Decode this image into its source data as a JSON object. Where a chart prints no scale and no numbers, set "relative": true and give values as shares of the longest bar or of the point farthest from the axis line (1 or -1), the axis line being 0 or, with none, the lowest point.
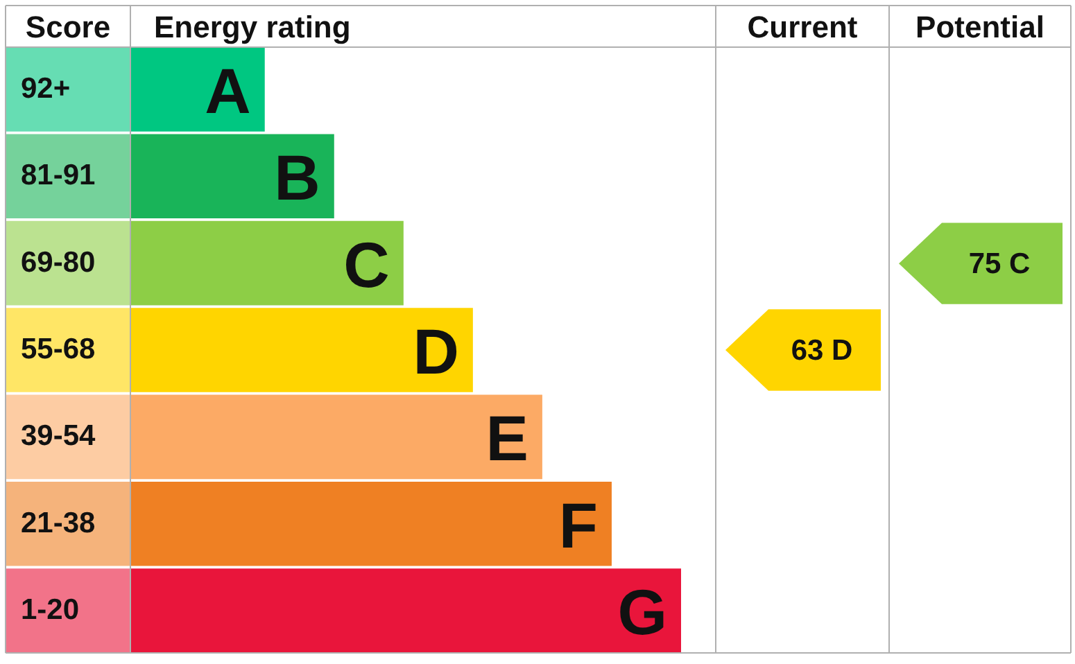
{
  "chart_data": {
    "type": "bar",
    "orientation": "horizontal",
    "relative": true,
    "values": [
      0.244,
      0.37,
      0.496,
      0.622,
      0.748,
      0.874,
      1
    ],
    "xlabel": "Energy rating",
    "ylabel": "Score",
    "categories": [
      "92+",
      "81-91",
      "69-80",
      "55-68",
      "39-54",
      "21-38",
      "1-20"
    ],
    "colors": [
      "#00c781",
      "#19b459",
      "#8dce46",
      "#ffd500",
      "#fcaa65",
      "#ef8023",
      "#e9153b"
    ],
    "annotations": [
      "Current",
      "Potential",
      "63 D",
      "75 C",
      "A",
      "B",
      "C",
      "D",
      "E",
      "F",
      "G"
    ]
  }
}
